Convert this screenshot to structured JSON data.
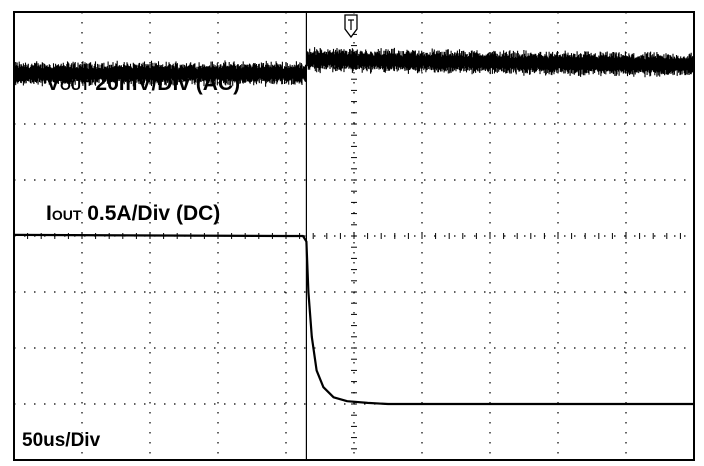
{
  "chart_data": {
    "type": "line",
    "title": "",
    "grid": true,
    "divisions": {
      "x": 10,
      "y": 8
    },
    "timebase": "50us/Div",
    "trigger_icon": "trigger-marker-icon",
    "trigger_division": 4.3,
    "channels": [
      {
        "name_main": "V",
        "name_sub": "OUT",
        "scale": " 20mV/Div (AC)",
        "description": "noisy output voltage, steps up slightly at load release",
        "x_div": [
          0,
          4.3,
          4.3,
          10
        ],
        "y_div": [
          6.9,
          6.9,
          7.15,
          7.05
        ],
        "noise_band_div": 0.22
      },
      {
        "name_main": "I",
        "name_sub": "OUT",
        "scale": " 0.5A/Div (DC)",
        "description": "output current falls from about 4.0 div to about 1.0 div after trigger",
        "x_div": [
          0,
          4.0,
          4.25,
          4.3,
          4.33,
          4.38,
          4.45,
          4.55,
          4.7,
          4.9,
          5.2,
          5.5,
          6.0,
          10
        ],
        "y_div": [
          4.02,
          4.0,
          4.0,
          3.9,
          3.0,
          2.2,
          1.6,
          1.3,
          1.12,
          1.05,
          1.02,
          1.0,
          1.0,
          1.0
        ]
      }
    ]
  }
}
